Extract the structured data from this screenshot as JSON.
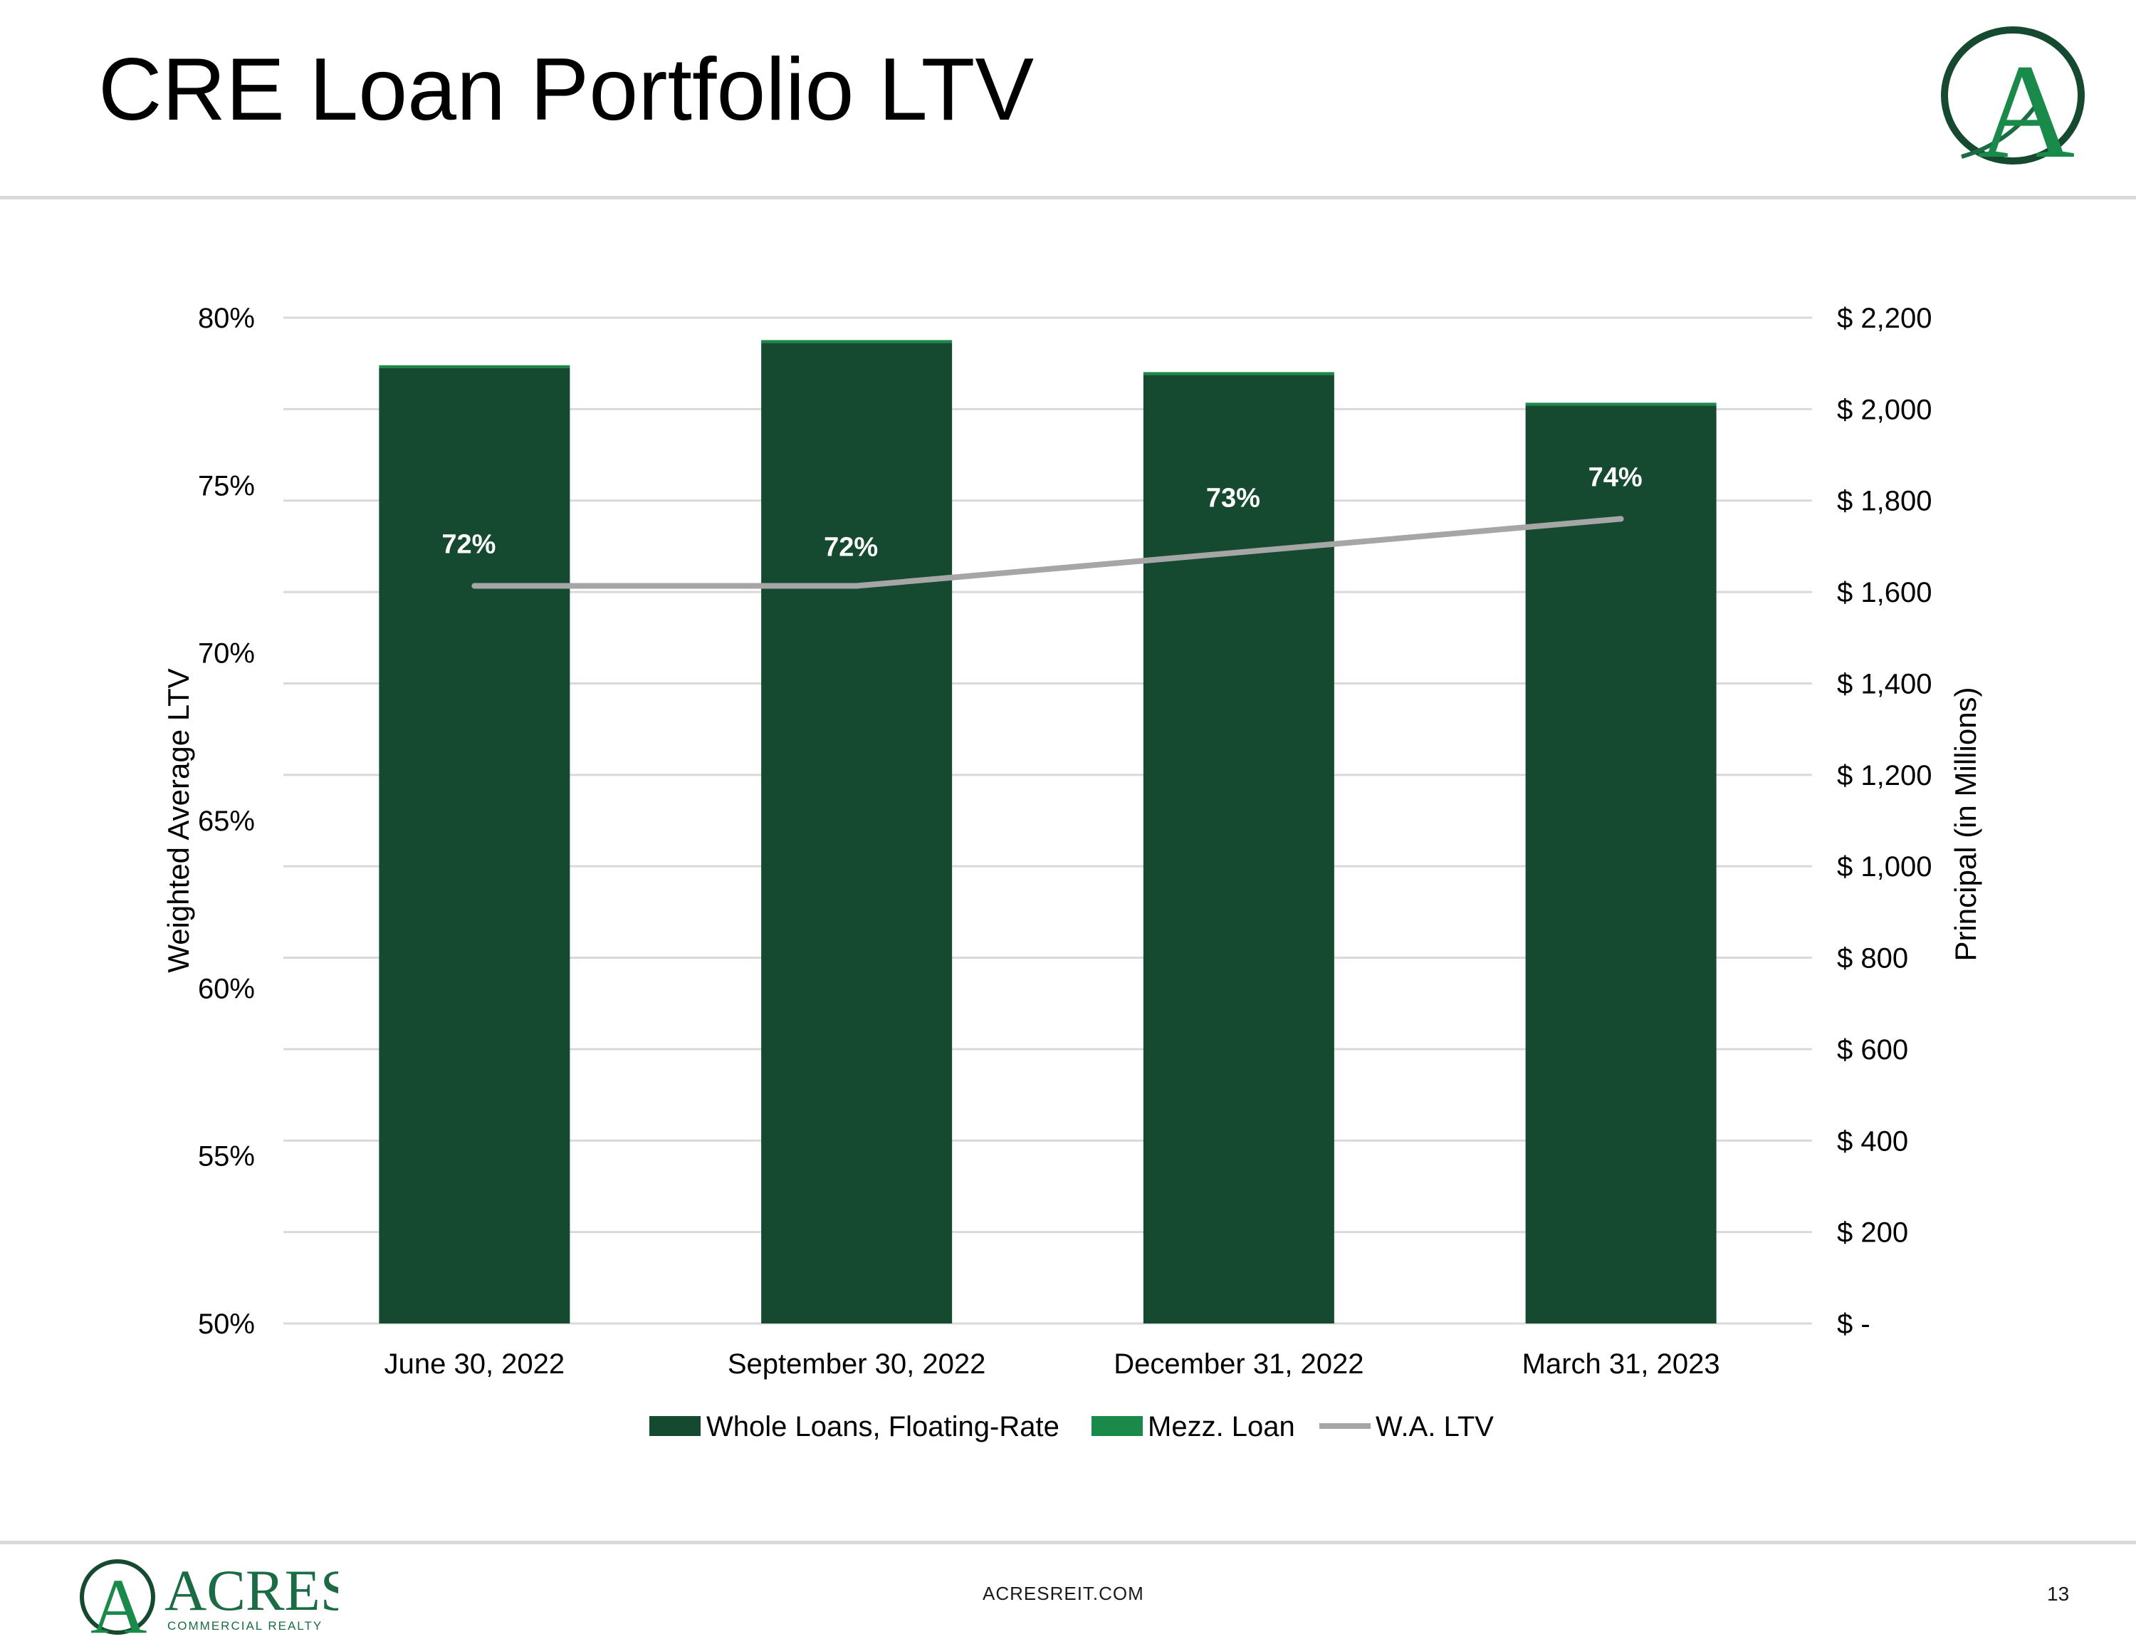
{
  "slide": {
    "title": "CRE Loan Portfolio LTV",
    "footer_url": "ACRESREIT.COM",
    "page_number": "13",
    "brand_name": "ACRES",
    "brand_subtitle": "COMMERCIAL REALTY",
    "logo_letter": "A"
  },
  "colors": {
    "whole_loans": "#154a31",
    "mezz_loan": "#1a8a4a",
    "wa_ltv": "#a6a6a6",
    "brand": "#1b6b45",
    "grid": "#d9d9d9"
  },
  "chart_data": {
    "type": "bar",
    "stacked": true,
    "title": "",
    "categories": [
      "June 30, 2022",
      "September 30, 2022",
      "December 31, 2022",
      "March 31, 2023"
    ],
    "series": [
      {
        "name": "Whole Loans, Floating-Rate",
        "axis": "right",
        "kind": "bar",
        "values": [
          2090,
          2145,
          2075,
          2008
        ]
      },
      {
        "name": "Mezz. Loan",
        "axis": "right",
        "kind": "bar",
        "values": [
          6,
          6,
          6,
          6
        ]
      },
      {
        "name": "W.A. LTV",
        "axis": "left",
        "kind": "line",
        "values": [
          72,
          72,
          73,
          74
        ],
        "plot_values": [
          72.0,
          72.0,
          73.0,
          74.0
        ],
        "labels": [
          "72%",
          "72%",
          "73%",
          "74%"
        ]
      }
    ],
    "y_left": {
      "label": "Weighted Average LTV",
      "min": 50,
      "max": 80,
      "ticks": [
        50,
        55,
        60,
        65,
        70,
        75,
        80
      ],
      "tick_labels": [
        "50%",
        "55%",
        "60%",
        "65%",
        "70%",
        "75%",
        "80%"
      ]
    },
    "y_right": {
      "label": "Principal (in Millions)",
      "min": 0,
      "max": 2200,
      "ticks": [
        0,
        200,
        400,
        600,
        800,
        1000,
        1200,
        1400,
        1600,
        1800,
        2000,
        2200
      ],
      "tick_labels": [
        "$ -",
        "$ 200",
        "$ 400",
        "$ 600",
        "$ 800",
        "$ 1,000",
        "$ 1,200",
        "$ 1,400",
        "$ 1,600",
        "$ 1,800",
        "$ 2,000",
        "$ 2,200"
      ]
    },
    "grid": true,
    "legend": "bottom-center"
  }
}
